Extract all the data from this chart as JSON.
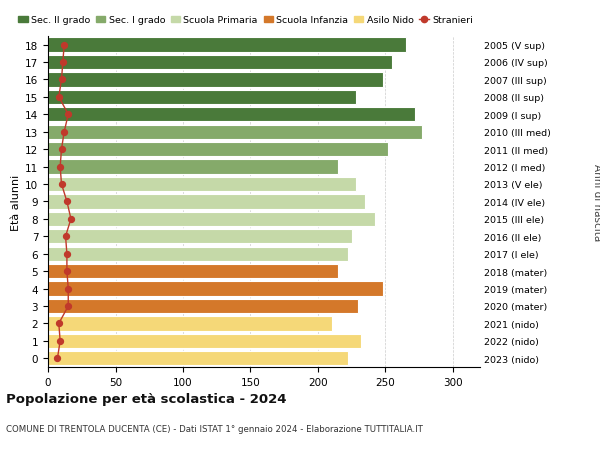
{
  "ages": [
    18,
    17,
    16,
    15,
    14,
    13,
    12,
    11,
    10,
    9,
    8,
    7,
    6,
    5,
    4,
    3,
    2,
    1,
    0
  ],
  "bar_values": [
    265,
    255,
    248,
    228,
    272,
    277,
    252,
    215,
    228,
    235,
    242,
    225,
    222,
    215,
    248,
    230,
    210,
    232,
    222
  ],
  "stranieri": [
    12,
    11,
    10,
    8,
    15,
    12,
    10,
    9,
    10,
    14,
    17,
    13,
    14,
    14,
    15,
    15,
    8,
    9,
    7
  ],
  "right_labels": [
    "2005 (V sup)",
    "2006 (IV sup)",
    "2007 (III sup)",
    "2008 (II sup)",
    "2009 (I sup)",
    "2010 (III med)",
    "2011 (II med)",
    "2012 (I med)",
    "2013 (V ele)",
    "2014 (IV ele)",
    "2015 (III ele)",
    "2016 (II ele)",
    "2017 (I ele)",
    "2018 (mater)",
    "2019 (mater)",
    "2020 (mater)",
    "2021 (nido)",
    "2022 (nido)",
    "2023 (nido)"
  ],
  "bar_colors": [
    "#4a7a3a",
    "#4a7a3a",
    "#4a7a3a",
    "#4a7a3a",
    "#4a7a3a",
    "#85aa6a",
    "#85aa6a",
    "#85aa6a",
    "#c5d9a8",
    "#c5d9a8",
    "#c5d9a8",
    "#c5d9a8",
    "#c5d9a8",
    "#d4782a",
    "#d4782a",
    "#d4782a",
    "#f5d878",
    "#f5d878",
    "#f5d878"
  ],
  "legend_labels": [
    "Sec. II grado",
    "Sec. I grado",
    "Scuola Primaria",
    "Scuola Infanzia",
    "Asilo Nido",
    "Stranieri"
  ],
  "legend_colors": [
    "#4a7a3a",
    "#85aa6a",
    "#c5d9a8",
    "#d4782a",
    "#f5d878",
    "#c0392b"
  ],
  "title": "Popolazione per età scolastica - 2024",
  "subtitle": "COMUNE DI TRENTOLA DUCENTA (CE) - Dati ISTAT 1° gennaio 2024 - Elaborazione TUTTITALIA.IT",
  "ylabel": "Età alunni",
  "right_ylabel": "Anni di nascita",
  "xlim": [
    0,
    320
  ],
  "xticks": [
    0,
    50,
    100,
    150,
    200,
    250,
    300
  ],
  "stranieri_color": "#c0392b",
  "bg_color": "#ffffff",
  "grid_color": "#cccccc",
  "bar_height": 0.82
}
